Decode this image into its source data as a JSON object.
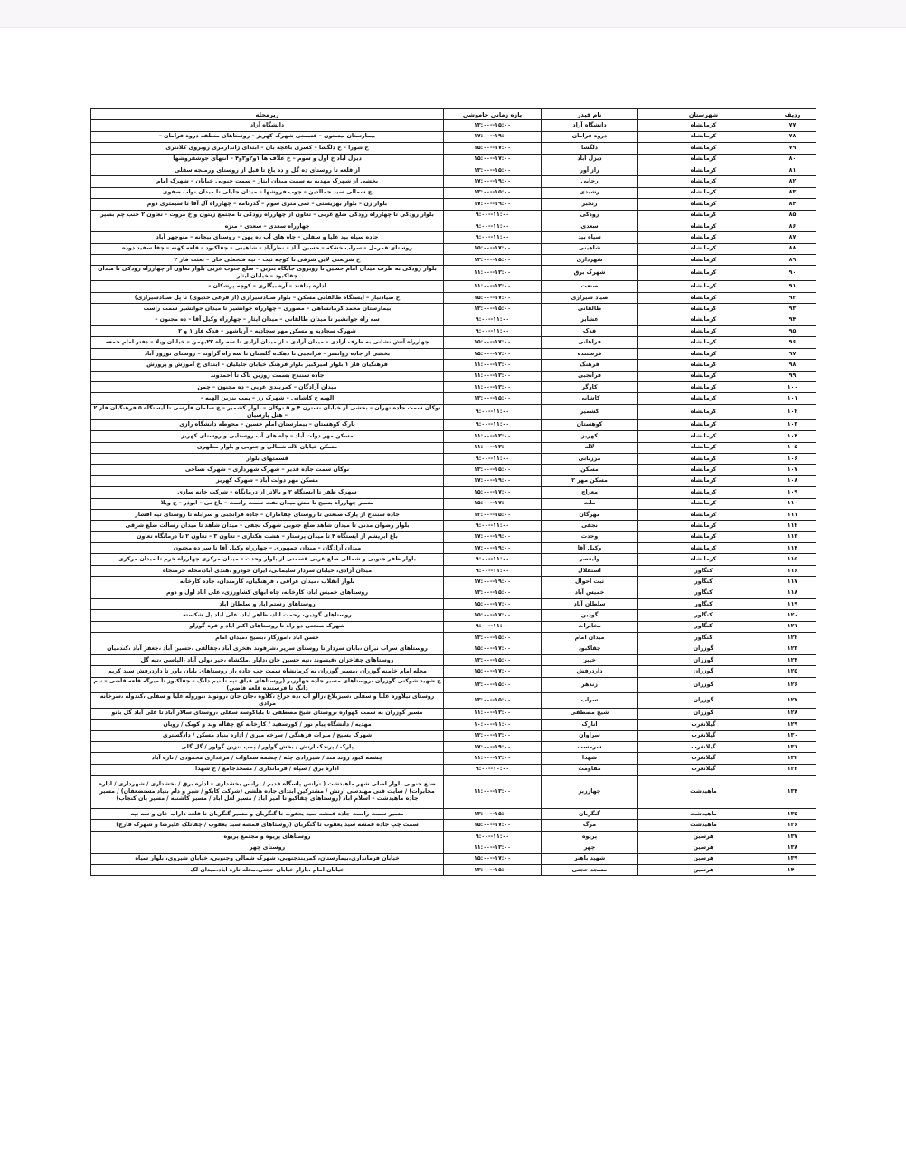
{
  "header": {
    "row": "ردیف",
    "city": "شهرستان",
    "feeder": "نام فیدر",
    "time": "بازه زمانی خاموشی",
    "area": "زیرمحله"
  },
  "rows": [
    [
      "۷۷",
      "کرمانشاه",
      "دانشگاه آزاد",
      "۱۳:۰۰--۱۵:۰۰",
      "دانشگاه آزاد"
    ],
    [
      "۷۸",
      "کرمانشاه",
      "دروه فرامان",
      "۱۷:۰۰--۱۹:۰۰",
      "بیمارستان بیستون – قسمتی شهرک کهریز – روستاهای منطقه دروه فرامان –"
    ],
    [
      "۷۹",
      "کرمانشاه",
      "دلگشا",
      "۱۵:۰۰--۱۷:۰۰",
      "خ شورا – خ دلگشا – کسری باغچه بان – ابتدای ژاندارمری روبروی کلانتری"
    ],
    [
      "۸۰",
      "کرمانشاه",
      "دیزل آباد",
      "۱۵:۰۰--۱۷:۰۰",
      "دیزل آباد خ اول و سوم – خ علاف ها ۱و۲و۳و۴ – انتهای جوشفروشها"
    ],
    [
      "۸۱",
      "کرمانشاه",
      "راز آور",
      "۱۳:۰۰--۱۵:۰۰",
      "از قلعه تا روستای ده گل و ده باغ تا قبل از روستای ورمنجه سفلی"
    ],
    [
      "۸۲",
      "کرمانشاه",
      "رجایی",
      "۱۷:۰۰--۱۹:۰۰",
      "بخشی از شهرک مهدیه به سمت میدان ایثار – سمت جنوبی خیابان – شهرک امام"
    ],
    [
      "۸۳",
      "کرمانشاه",
      "رشیدی",
      "۱۳:۰۰--۱۵:۰۰",
      "خ شمالی سید جمالدین – چوب فروشها – میدان جلیلی تا میدان نواب صفوی"
    ],
    [
      "۸۴",
      "کرمانشاه",
      "رنجبر",
      "۱۷:۰۰--۱۹:۰۰",
      "بلوار زن – بلوار بهزیستی – سی متری سوم – گذرنامه – چهارراه آل آقا تا سیمتری دوم"
    ],
    [
      "۸۵",
      "کرمانشاه",
      "رودکی",
      "۹:۰۰--۱۱:۰۰",
      "بلوار رودکی تا چهارراه رودکی ضلع غربی – تعاون از چهارراه رودکی تا مجتمع زیتون و خ مروت – تعاون ۲ جنب چم بشیر"
    ],
    [
      "۸۶",
      "کرمانشاه",
      "سعدی",
      "۹:۰۰--۱۱:۰۰",
      "چهارراه سعدی – سعدی – منزه"
    ],
    [
      "۸۷",
      "کرمانشاه",
      "سیاه بید",
      "۹:۰۰--۱۱:۰۰",
      "جاده سیاه بید علیا و سفلی – چاه های آب ده پهن – روستای بیجانه – منوچهر آباد"
    ],
    [
      "۸۸",
      "کرمانشاه",
      "شاهینی",
      "۱۵:۰۰--۱۷:۰۰",
      "روستای قمرمل – سراب خشکه – حسین آباد – نظرآباد – شاهینی – چقاکبود – قلعه کهنه – چقا سفید دوده"
    ],
    [
      "۸۹",
      "کرمانشاه",
      "شهرداری",
      "۱۳:۰۰--۱۵:۰۰",
      "خ شریعتی لاین شرقی تا کوچه ثبت – تپه فتحعلی خان – بعثت فاز ۲"
    ],
    [
      "۹۰",
      "کرمانشاه",
      "شهرک برق",
      "۱۱:۰۰--۱۳:۰۰",
      "بلوار رودکی به طرف میدان امام حسین تا روبروی جایگاه بنزین – ضلع جنوب غربی بلوار تعاون از چهارراه رودکی تا میدان چقاکبود – خیابان ایثار"
    ],
    [
      "۹۱",
      "کرمانشاه",
      "صنعت",
      "۱۱:۰۰--۱۳:۰۰",
      "اداره پدافند – آره بیگلری – کوچه پزشکان –"
    ],
    [
      "۹۲",
      "کرمانشاه",
      "صیاد شیرازی",
      "۱۵:۰۰--۱۷:۰۰",
      "خ صیادنیار – ایستگاه طالقانی مسکن – بلوار صیادشیرازی (از فرعی خدیوی) تا پل صیادشیرازی)"
    ],
    [
      "۹۳",
      "کرمانشاه",
      "طالقانی",
      "۱۳:۰۰--۱۵:۰۰",
      "بیمارستان محمد کرمانشاهی – مصوری – چهارراه جوانشیر تا میدان جوانشیر سمت راست"
    ],
    [
      "۹۴",
      "کرمانشاه",
      "عشایر",
      "۹:۰۰--۱۱:۰۰",
      "سه راه جوانشیر تا میدان طالقانی – میدان ایثار – چهارراه وکیل آقا – ده مجنون –"
    ],
    [
      "۹۵",
      "کرمانشاه",
      "فدک",
      "۹:۰۰--۱۱:۰۰",
      "شهرک سجادیه و مسکن مهر سجادیه – آریاشهر – فدک فاز ۱ و ۲"
    ],
    [
      "۹۶",
      "کرمانشاه",
      "فراهانی",
      "۱۵:۰۰--۱۷:۰۰",
      "چهارراه آتش نشانی به طرف آزادی – میدان آزادی – از میدان آزادی تا سه راه ۲۲بهمن – خیابان ویلا – دفتر امام جمعه"
    ],
    [
      "۹۷",
      "کرمانشاه",
      "فرستنده",
      "۱۵:۰۰--۱۷:۰۰",
      "بخشی از جاده روانسر – فرانجبی تا دهکده گلستان تا سه راه گراوند – روستای نوروز آباد"
    ],
    [
      "۹۸",
      "کرمانشاه",
      "فرهنگ",
      "۱۱:۰۰--۱۳:۰۰",
      "فرهنگیان فاز ۱ بلوار امیرکبیر بلوار فرهنگ خیابان جلیلیان – ابتدای خ آموزش و پرورش"
    ],
    [
      "۹۹",
      "کرمانشاه",
      "فرانجبی",
      "۱۱:۰۰--۱۳:۰۰",
      "جاده سنندج بسمت روزبن تاک تا احمدوند"
    ],
    [
      "۱۰۰",
      "کرمانشاه",
      "کارگر",
      "۱۱:۰۰--۱۳:۰۰",
      "میدان آزادگان – کمربندی غربی – ده مجنون – چمن"
    ],
    [
      "۱۰۱",
      "کرمانشاه",
      "کاشانی",
      "۱۳:۰۰--۱۵:۰۰",
      "الهیه خ کاشانی – شهرک رز – پمپ بنزین الهیه –"
    ],
    [
      "۱۰۲",
      "کرمانشاه",
      "کشمیر",
      "۹:۰۰--۱۱:۰۰",
      "نوکان سمت جاده تهران – بخشی از خیابان نسترن ۴ و ۵ نوکان – بلوار کشمیر – خ سلمان فارسی تا ایستگاه ۵ فرهنگیان فاز ۲ – هتل پارسیان"
    ],
    [
      "۱۰۳",
      "کرمانشاه",
      "کوهستان",
      "۹:۰۰--۱۱:۰۰",
      "پارک کوهستان – بیمارستان امام حسین – محوطه دانشگاه رازی"
    ],
    [
      "۱۰۴",
      "کرمانشاه",
      "کهریز",
      "۱۱:۰۰--۱۳:۰۰",
      "مسکن مهر دولت آباد – چاه های آب روستایی و روستای کهریز"
    ],
    [
      "۱۰۵",
      "کرمانشاه",
      "لاله",
      "۱۱:۰۰--۱۳:۰۰",
      "مسکن خیابان لاله شمالی و جنوبی و بلوار مطهری"
    ],
    [
      "۱۰۶",
      "کرمانشاه",
      "مرزبانی",
      "۹:۰۰--۱۱:۰۰",
      "قسمتهای بلوار"
    ],
    [
      "۱۰۷",
      "کرمانشاه",
      "مسکن",
      "۱۳:۰۰--۱۵:۰۰",
      "نوکان سمت جاده قدیر – شهرک شهرداری – شهرک نساجی"
    ],
    [
      "۱۰۸",
      "کرمانشاه",
      "مسکن مهر ۲",
      "۱۷:۰۰--۱۹:۰۰",
      "مسکن مهر دولت آباد – شهرک کهریز"
    ],
    [
      "۱۰۹",
      "کرمانشاه",
      "معراج",
      "۱۵:۰۰--۱۷:۰۰",
      "شهرک ظفر تا ایستگاه ۲ و بالاتر از درمانگاه – شرکت خانه سازی"
    ],
    [
      "۱۱۰",
      "کرمانشاه",
      "ملت",
      "۱۵:۰۰--۱۷:۰۰",
      "مسیر چهارراه بسیج تا نبش میدان نفت سمت راست – باغ نی – ابوذر – خ ویلا"
    ],
    [
      "۱۱۱",
      "کرمانشاه",
      "مهرگان",
      "۱۳:۰۰--۱۵:۰۰",
      "جاده سنندج از پارک صنعتی تا روستای چقاماران – جاده فرانجبی و سرابله تا روستای تپه افشار"
    ],
    [
      "۱۱۲",
      "کرمانشاه",
      "نجفی",
      "۹:۰۰--۱۱:۰۰",
      "بلوار رضوان مدنی تا میدان شاهد ضلع جنوبی شهرک نجفی – میدان شاهد تا میدان رسالت ضلع شرقی"
    ],
    [
      "۱۱۳",
      "کرمانشاه",
      "وحدت",
      "۱۷:۰۰--۱۹:۰۰",
      "باغ ابریشم از ایستگاه ۴ تا میدان پرستار – هشت هکتاری – تعاون ۳ – تعاون ۲ تا درمانگاه تعاون"
    ],
    [
      "۱۱۴",
      "کرمانشاه",
      "وکیل آقا",
      "۱۷:۰۰--۱۹:۰۰",
      "میدان آزادگان – میدان جمهوری – چهارراه وکیل آقا تا سر ده مجنون"
    ],
    [
      "۱۱۵",
      "کرمانشاه",
      "ولیعصر",
      "۹:۰۰--۱۱:۰۰",
      "بلوار ظفر جنوبی و شمالی ضلع غربی قسمتی از بلوار وحدت – میدان مرکزی چهارراه خرم تا میدان مرکزی"
    ],
    [
      "۱۱۶",
      "کنگاور",
      "استقلال",
      "۹:۰۰--۱۱:۰۰",
      "میدان آزادی، خیابان سردار سلیمانی، ایران خودرو ،هندی آباد،محله خرمنجاه"
    ],
    [
      "۱۱۷",
      "کنگاور",
      "ثبت احوال",
      "۱۷:۰۰--۱۹:۰۰",
      "بلوار انقلاب ،میدان عراقی ، فرهنگیان، کارمندان، جاده کارخانه"
    ],
    [
      "۱۱۸",
      "کنگاور",
      "خمیس آباد",
      "۱۳:۰۰--۱۵:۰۰",
      "روستاهای خمیس اباد، کارخانه، چاه ابهای کشاورزی، علی اباد اول و دوم"
    ],
    [
      "۱۱۹",
      "کنگاور",
      "سلطان آباد",
      "۱۵:۰۰--۱۷:۰۰",
      "روستاهای رستم اباد و سلطان اباد"
    ],
    [
      "۱۲۰",
      "کنگاور",
      "گودین",
      "۱۵:۰۰--۱۷:۰۰",
      "روستاهای گودین، رحمت اباد، ظاهر اباد، علی اباد پل شکسته"
    ],
    [
      "۱۲۱",
      "کنگاور",
      "مخابرات",
      "۹:۰۰--۱۱:۰۰",
      "شهرک صنعتی دو راه تا روستاهای اکبر اباد و قره گوزلو"
    ],
    [
      "۱۲۲",
      "کنگاور",
      "میدان امام",
      "۱۳:۰۰--۱۵:۰۰",
      "حسن اباد ،اموزگار ،بسیج ،میدان امام"
    ],
    [
      "۱۲۳",
      "گوزران",
      "چقاکبود",
      "۱۵:۰۰--۱۷:۰۰",
      "روستاهای سراب نیران ،بابان سردار تا روستای سرپر ،شرفوند ،فخری آباد ،چقالقی ،حسین آباد ،جعفر آباد ،کندمیان"
    ],
    [
      "۱۲۴",
      "گوزران",
      "خیبر",
      "۱۳:۰۰--۱۵:۰۰",
      "روستاهای چقاخزان ،قیسوند ،تپه حسین خان ،دایار ،ملکشاه ،خیر ،ولی آباد ،الیاسی ،تپه گل"
    ],
    [
      "۱۲۵",
      "گوزران",
      "داردرفش",
      "۱۵:۰۰--۱۷:۰۰",
      "محله امام خامنه گوزران ،مسیر گوزران به کرمانشاه سمت چپ جاده ،از روستاهای بابان باور تا داردرفش سید کریم"
    ],
    [
      "۱۲۶",
      "گوزران",
      "زندهر",
      "۱۳:۰۰--۱۵:۰۰",
      "خ شهید شوکتی گوزران ،روستاهای مسیر جاده چهارزبر (روستاهای قیاق تپه تا نیم دانگ – چقاکبوز تا میرگه قلعه قاضی – نیم دانگ تا فرستنده قلعه قاضی)"
    ],
    [
      "۱۲۷",
      "گوزران",
      "سراب",
      "۱۳:۰۰--۱۵:۰۰",
      "روستای نیلاوره علیا و سفلی ،سبزبلاغ ،زالو آب ،ده چراغ ،کلاوه ،جان جان ،رونوند ،نوروله علیا و سفلی ،کندوله ،سرخانه مرادی"
    ],
    [
      "۱۲۸",
      "گوزران",
      "شیخ مصطفی",
      "۱۱:۰۰--۱۳:۰۰",
      "مسیر گوزران به سمت کهواره ،روستای شیخ مصطفی تا باباکوسه سفلی ،روستای سالار آباد تا علی آباد گل بانو"
    ],
    [
      "۱۲۹",
      "گیلانغرب",
      "انارک",
      "۱۰:۰۰--۱۱:۰۰",
      "مهدیه / دانشگاه پیام نور / کورسفید / کارخانه کچ چقاله وند و کوبک / رویان"
    ],
    [
      "۱۳۰",
      "گیلانغرب",
      "سراوان",
      "۱۲:۰۰--۱۳:۰۰",
      "شهرک بسیج / میراث فرهنگی / سرخه میری / اداره بنیاد مسکن / دادگستری"
    ],
    [
      "۱۳۱",
      "گیلانغرب",
      "سرمست",
      "۱۷:۰۰--۱۹:۰۰",
      "پارک / پرندک ارتش / بخش گواور / پمپ بنزین گواور / گل گلی"
    ],
    [
      "۱۳۲",
      "گیلانغرب",
      "شهدا",
      "۱۱:۰۰--۱۳:۰۰",
      "چشمه کبود روند مند / شیرزادی چله / چشمه سماوات / مرغداری محمودی / تازه آباد"
    ],
    [
      "۱۳۳",
      "گیلانغرب",
      "مقاومت",
      "۹:۰۰--۱۰:۰۰",
      "اداره برق / سپاه / فرمانداری / مسجدجامع / خ شهدا"
    ],
    [
      "۱۳۴",
      "ماهیدشت",
      "چهارزبر",
      "۱۱:۰۰--۱۳:۰۰",
      "ضلع جنوبی بلوار اصلی شهر ماهیدشت ( ترانس پاسگاه قدیم / ترانس بخشداری – اداره برق / بخشداری / شهرداری / اداره مخابرات) / سایت فنی مهندسی ارتش / مشترکین ابتدای جاده هلشی (شرکت کابکو / شیر و دام بنیاد مستضعفان) / مسیر جاده ماهیدشت – اسلام آباد (روستاهای چقاکبو تا امیر آباد / مسیر لعل آباد / مسیر کاشنبه / مسیر بان کنجاب)"
    ],
    [
      "۱۳۵",
      "ماهیدشت",
      "گنگربان",
      "۱۳:۰۰--۱۵:۰۰",
      "مسیر سمت راست جاده قمشه سید یعقوب تا گنگربان و مسیر گنگربان تا قلعه داراب خان و سه تپه"
    ],
    [
      "۱۳۶",
      "ماهیدشت",
      "مرگ",
      "۱۵:۰۰--۱۷:۰۰",
      "سمت چپ جاده قمشه سید یعقوب تا گنگربان (روستاهای قمشه سید یعقوب / چقاتلک علیرضا و شهرک قارچ)"
    ],
    [
      "۱۳۷",
      "هرسین",
      "پریوه",
      "۹:۰۰--۱۱:۰۰",
      "روستاهای پریوه و مجتمع پریوه"
    ],
    [
      "۱۳۸",
      "هرسین",
      "چهر",
      "۱۱:۰۰--۱۳:۰۰",
      "روستای چهر"
    ],
    [
      "۱۳۹",
      "هرسین",
      "شهید باهنر",
      "۱۵:۰۰--۱۷:۰۰",
      "خیابان فرمانداری،بیمارستان، کمربندجنوبی، شهرک شمالی وجنوبی، خیابان شیروی، بلوار سپاه"
    ],
    [
      "۱۴۰",
      "هرسین",
      "مسجد حجتی",
      "۱۳:۰۰--۱۵:۰۰",
      "خیابان امام ،بازار خیابان حجتی،محله تازه اباد،میدان لک"
    ]
  ]
}
